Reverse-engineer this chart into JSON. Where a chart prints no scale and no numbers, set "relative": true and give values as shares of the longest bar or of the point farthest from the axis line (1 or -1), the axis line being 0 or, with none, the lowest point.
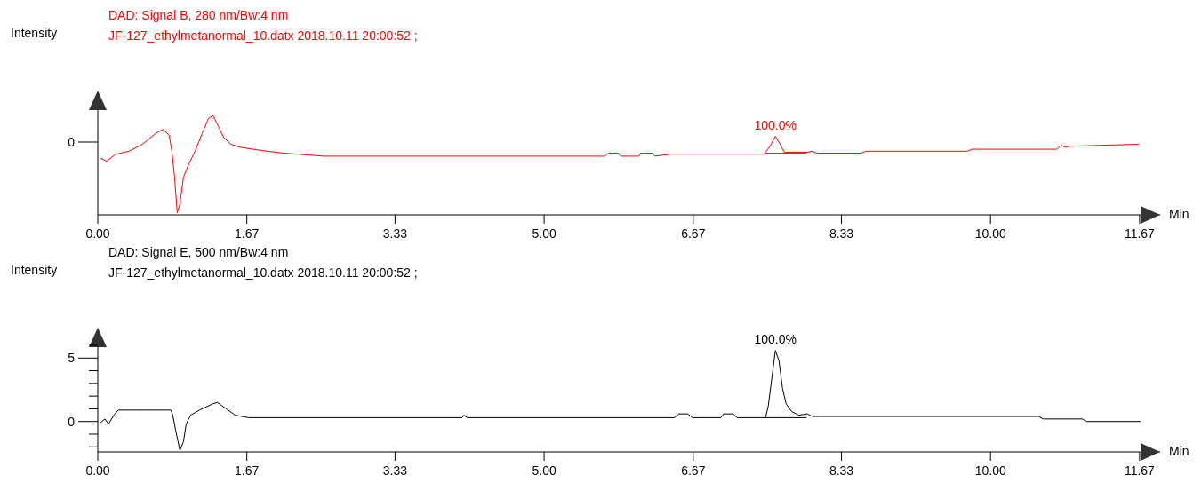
{
  "chart_data": [
    {
      "type": "line",
      "title": "DAD: Signal B, 280 nm/Bw:4 nm",
      "subtitle": "JF-127_ethylmetanormal_10.datx 2018.10.11 20:00:52 ;",
      "ylabel": "Intensity",
      "xlabel": "Min",
      "relative": true,
      "xlim": [
        0,
        11.9
      ],
      "xticks": [
        {
          "value": 0,
          "label": "0.00"
        },
        1.67,
        3.33,
        {
          "value": 5,
          "label": "5.00"
        },
        6.67,
        8.33,
        {
          "value": 10,
          "label": "10.00"
        },
        11.67
      ],
      "annotations": [
        "0",
        {
          "text": "100.0%",
          "x": 7.59,
          "y": 0.79
        }
      ],
      "series": [
        {
          "color": "#ff0000",
          "x": [
            0.03,
            0.1,
            0.2,
            0.35,
            0.5,
            0.65,
            0.73,
            0.8,
            0.83,
            0.86,
            0.89,
            0.92,
            0.96,
            1.02,
            1.09,
            1.17,
            1.24,
            1.29,
            1.34,
            1.41,
            1.49,
            1.59,
            1.74,
            1.89,
            2.09,
            2.53,
            5.67,
            5.72,
            5.83,
            5.86,
            6.06,
            6.08,
            6.21,
            6.24,
            6.41,
            7.46,
            7.53,
            7.59,
            7.63,
            7.69,
            7.95,
            8.0,
            8.05,
            8.55,
            8.6,
            9.74,
            9.79,
            10.74,
            10.79,
            10.84,
            10.88,
            11.66
          ],
          "values": [
            0.57,
            0.54,
            0.61,
            0.64,
            0.71,
            0.82,
            0.86,
            0.8,
            0.64,
            0.38,
            0.02,
            0.11,
            0.38,
            0.51,
            0.64,
            0.82,
            0.97,
            1.0,
            0.91,
            0.78,
            0.71,
            0.68,
            0.66,
            0.64,
            0.62,
            0.59,
            0.59,
            0.62,
            0.62,
            0.59,
            0.59,
            0.62,
            0.62,
            0.59,
            0.61,
            0.61,
            0.69,
            0.79,
            0.73,
            0.63,
            0.63,
            0.64,
            0.62,
            0.62,
            0.64,
            0.64,
            0.66,
            0.66,
            0.7,
            0.68,
            0.69,
            0.71
          ]
        },
        {
          "color": "#4040ff",
          "x": [
            7.48,
            7.94
          ],
          "values": [
            0.62,
            0.62
          ]
        }
      ]
    },
    {
      "type": "line",
      "title": "DAD: Signal E, 500 nm/Bw:4 nm",
      "subtitle": "JF-127_ethylmetanormal_10.datx 2018.10.11 20:00:52 ;",
      "ylabel": "Intensity",
      "xlabel": "Min",
      "xlim": [
        0,
        11.9
      ],
      "ylim": [
        -2.4,
        6.7
      ],
      "xticks": [
        {
          "value": 0,
          "label": "0.00"
        },
        1.67,
        3.33,
        {
          "value": 5,
          "label": "5.00"
        },
        6.67,
        8.33,
        {
          "value": 10,
          "label": "10.00"
        },
        11.67
      ],
      "yticks": [
        {
          "value": -2,
          "label": null
        },
        {
          "value": -1,
          "label": null
        },
        0,
        {
          "value": 1,
          "label": null
        },
        {
          "value": 2,
          "label": null
        },
        {
          "value": 3,
          "label": null
        },
        {
          "value": 4,
          "label": null
        },
        5,
        {
          "value": 6,
          "label": null
        }
      ],
      "annotations": [
        {
          "text": "100.0%",
          "x": 7.59,
          "y": 5.6
        }
      ],
      "series": [
        {
          "color": "#000000",
          "x": [
            0.03,
            0.08,
            0.12,
            0.18,
            0.23,
            0.5,
            0.75,
            0.82,
            0.84,
            0.87,
            0.92,
            0.96,
            0.99,
            1.04,
            1.14,
            1.29,
            1.34,
            1.44,
            1.54,
            1.69,
            4.08,
            4.1,
            4.14,
            6.46,
            6.51,
            6.61,
            6.66,
            6.98,
            7.01,
            7.12,
            7.16,
            7.48,
            7.51,
            7.55,
            7.59,
            7.63,
            7.67,
            7.71,
            7.77,
            7.85,
            7.95,
            8.0,
            10.54,
            10.59,
            11.03,
            11.08,
            11.68
          ],
          "values": [
            -0.1,
            0.2,
            -0.2,
            0.5,
            0.9,
            0.9,
            0.9,
            0.9,
            0.5,
            -0.6,
            -2.3,
            -1.6,
            -0.2,
            0.5,
            0.9,
            1.4,
            1.5,
            1.0,
            0.5,
            0.3,
            0.3,
            0.5,
            0.3,
            0.3,
            0.6,
            0.6,
            0.3,
            0.3,
            0.6,
            0.6,
            0.3,
            0.3,
            1.2,
            3.4,
            5.6,
            4.8,
            2.6,
            1.4,
            0.8,
            0.5,
            0.6,
            0.4,
            0.4,
            0.2,
            0.2,
            0.0,
            0.0
          ]
        },
        {
          "color": "#000000",
          "x": [
            7.48,
            7.94
          ],
          "values": [
            0.3,
            0.3
          ]
        }
      ]
    }
  ]
}
